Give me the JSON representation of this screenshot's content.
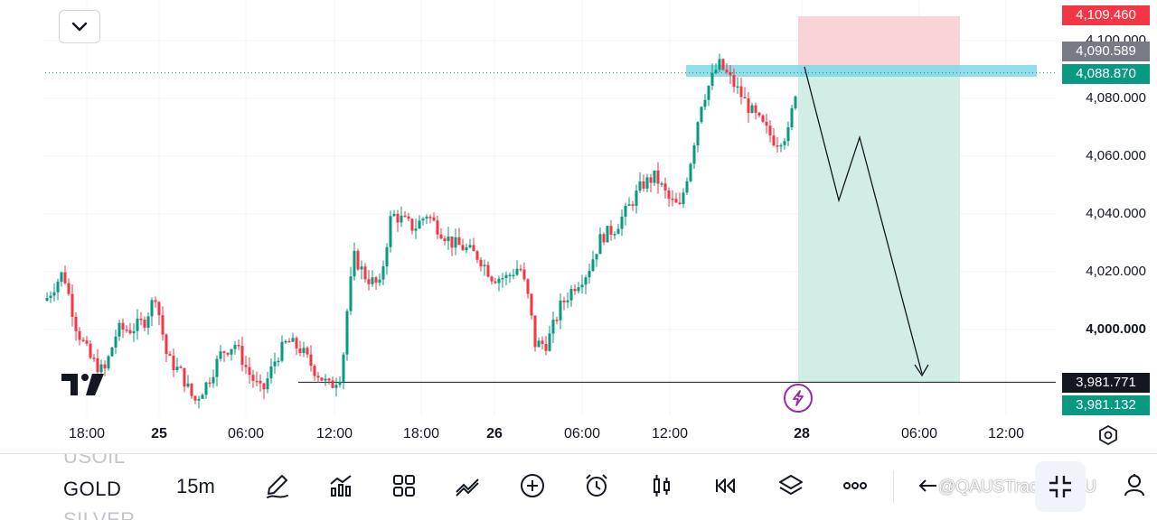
{
  "chart": {
    "symbol_list": [
      "USOIL",
      "GOLD",
      "SILVER"
    ],
    "active_symbol": "GOLD",
    "interval": "15m",
    "price_axis": {
      "labels": [
        {
          "text": "4,100.000",
          "value": 4100
        },
        {
          "text": "4,080.000",
          "value": 4080
        },
        {
          "text": "4,060.000",
          "value": 4060
        },
        {
          "text": "4,040.000",
          "value": 4040
        },
        {
          "text": "4,020.000",
          "value": 4020
        },
        {
          "text": "4,000.000",
          "value": 4000,
          "bold": true
        }
      ],
      "range": [
        3972,
        4114
      ]
    },
    "tags": {
      "stop": {
        "text": "4,109.460",
        "value": 4109.46,
        "color": "#f23645"
      },
      "entry": {
        "text": "4,090.589",
        "value": 4090.589,
        "color": "#787b86"
      },
      "current": {
        "text": "4,088.870",
        "value": 4088.87,
        "color": "#089981"
      },
      "target": {
        "text": "3,981.771",
        "value": 3981.771,
        "color": "#131722"
      },
      "target2": {
        "text": "3,981.132",
        "value": 3981.132,
        "color": "#089981"
      }
    },
    "time_axis": [
      {
        "text": "18:00",
        "bold": false
      },
      {
        "text": "25",
        "bold": true
      },
      {
        "text": "06:00",
        "bold": false
      },
      {
        "text": "12:00",
        "bold": false
      },
      {
        "text": "18:00",
        "bold": false
      },
      {
        "text": "26",
        "bold": true
      },
      {
        "text": "06:00",
        "bold": false
      },
      {
        "text": "12:00",
        "bold": false
      },
      {
        "text": "28",
        "bold": true
      },
      {
        "text": "06:00",
        "bold": false
      },
      {
        "text": "12:00",
        "bold": false
      }
    ],
    "colors": {
      "up": "#089981",
      "down": "#f23645",
      "stop_zone": "#f9d3d6",
      "profit_zone": "#d1ede6",
      "resistance": "#7fd7e6"
    }
  },
  "toolbar": {
    "tools": [
      "draw-icon",
      "indicators-icon",
      "layout-icon",
      "compare-icon",
      "add-icon",
      "alert-icon",
      "candle-type-icon",
      "replay-icon",
      "layers-icon",
      "more-icon"
    ],
    "watermark": "@QAUSTrader QAU"
  }
}
